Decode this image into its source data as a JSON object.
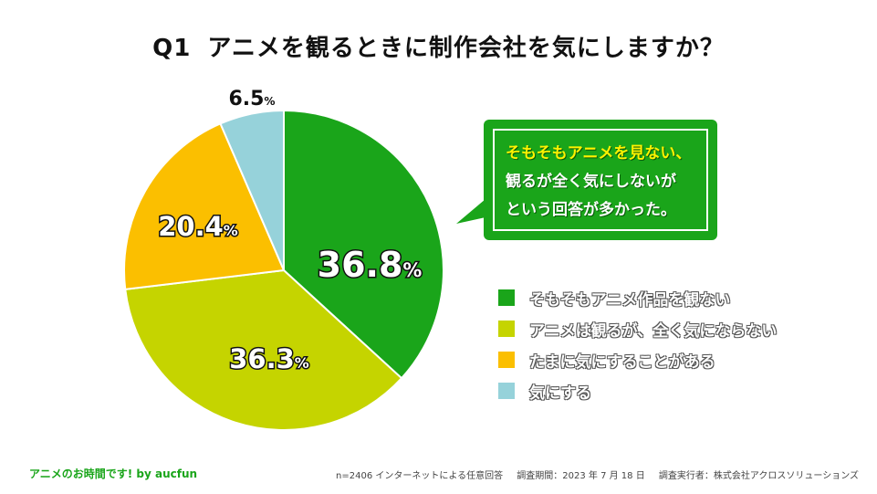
{
  "title": {
    "q": "Q1",
    "text": "アニメを観るときに制作会社を気にしますか？"
  },
  "chart_data": {
    "type": "pie",
    "categories": [
      "そもそもアニメ作品を観ない",
      "アニメは観るが、全く気にならない",
      "たまに気にすることがある",
      "気にする"
    ],
    "values": [
      36.8,
      36.3,
      20.4,
      6.5
    ],
    "labels": [
      "36.8%",
      "36.3%",
      "20.4%",
      "6.5%"
    ],
    "colors": [
      "#1aa51a",
      "#c5d400",
      "#fbbf00",
      "#96d2da"
    ],
    "legend_position": "right"
  },
  "callout": {
    "line1": "そもそもアニメを見ない、",
    "line2": "観るが全く気にしないが",
    "line3": "という回答が多かった。"
  },
  "footer": {
    "brand": "アニメのお時間です! by aucfun",
    "sample": "n=2406 インターネットによる任意回答",
    "period": "調査期間：2023 年 7 月 18 日",
    "conductor": "調査実行者：株式会社アクロスソリューションズ"
  }
}
